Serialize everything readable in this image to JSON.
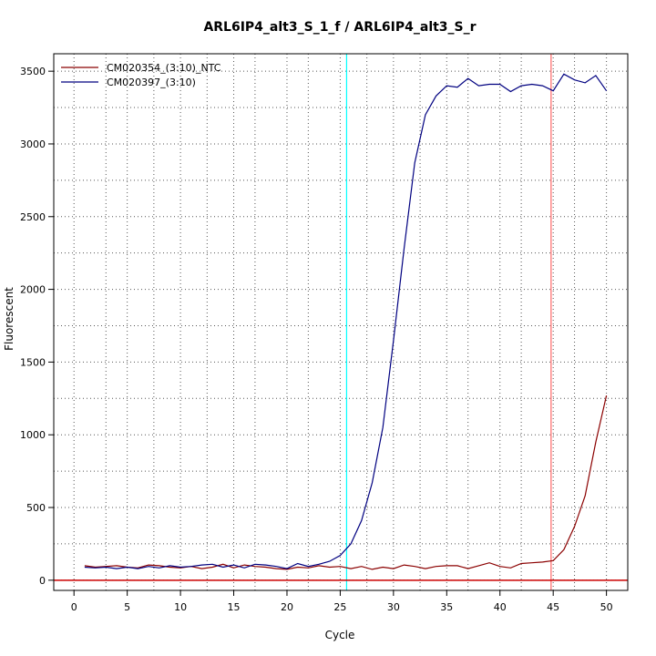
{
  "chart_data": {
    "type": "line",
    "title": "ARL6IP4_alt3_S_1_f / ARL6IP4_alt3_S_r",
    "xlabel": "Cycle",
    "ylabel": "Fluorescent",
    "xlim": [
      -1.9,
      52
    ],
    "ylim": [
      -70,
      3620
    ],
    "x_ticks": [
      0,
      5,
      10,
      15,
      20,
      25,
      30,
      35,
      40,
      45,
      50
    ],
    "y_ticks": [
      0,
      500,
      1000,
      1500,
      2000,
      2500,
      3000,
      3500
    ],
    "x_grid": [
      3,
      7.5,
      12.5,
      17,
      22,
      27.5,
      32.5,
      37,
      42,
      47
    ],
    "y_grid": [
      250,
      750,
      1250,
      1750,
      2250,
      2750,
      3250
    ],
    "grid": true,
    "legend_position": "top-left",
    "reference_lines": {
      "vertical": [
        {
          "x": 25.6,
          "color": "#00ffff"
        },
        {
          "x": 44.8,
          "color": "#ff6666"
        }
      ],
      "horizontal": [
        {
          "y": 0,
          "color": "#cc0000"
        }
      ]
    },
    "x": [
      1,
      2,
      3,
      4,
      5,
      6,
      7,
      8,
      9,
      10,
      11,
      12,
      13,
      14,
      15,
      16,
      17,
      18,
      19,
      20,
      21,
      22,
      23,
      24,
      25,
      26,
      27,
      28,
      29,
      30,
      31,
      32,
      33,
      34,
      35,
      36,
      37,
      38,
      39,
      40,
      41,
      42,
      43,
      44,
      45,
      46,
      47,
      48,
      49,
      50
    ],
    "series": [
      {
        "name": "CM020354_(3:10)_NTC",
        "color": "#8b0000",
        "values": [
          100,
          90,
          95,
          100,
          90,
          85,
          105,
          100,
          90,
          85,
          95,
          80,
          90,
          110,
          85,
          105,
          95,
          90,
          80,
          75,
          90,
          85,
          100,
          90,
          95,
          80,
          95,
          75,
          90,
          80,
          105,
          95,
          80,
          95,
          100,
          100,
          80,
          100,
          120,
          95,
          85,
          115,
          120,
          125,
          135,
          210,
          370,
          580,
          950,
          1270
        ]
      },
      {
        "name": "CM020397_(3:10)",
        "color": "#000080",
        "values": [
          90,
          85,
          90,
          80,
          90,
          80,
          95,
          85,
          100,
          90,
          95,
          105,
          110,
          90,
          105,
          85,
          110,
          105,
          95,
          80,
          115,
          95,
          110,
          130,
          170,
          250,
          410,
          670,
          1050,
          1650,
          2280,
          2870,
          3200,
          3330,
          3400,
          3390,
          3450,
          3400,
          3410,
          3410,
          3360,
          3400,
          3410,
          3400,
          3365,
          3480,
          3440,
          3420,
          3470,
          3365
        ]
      }
    ]
  }
}
